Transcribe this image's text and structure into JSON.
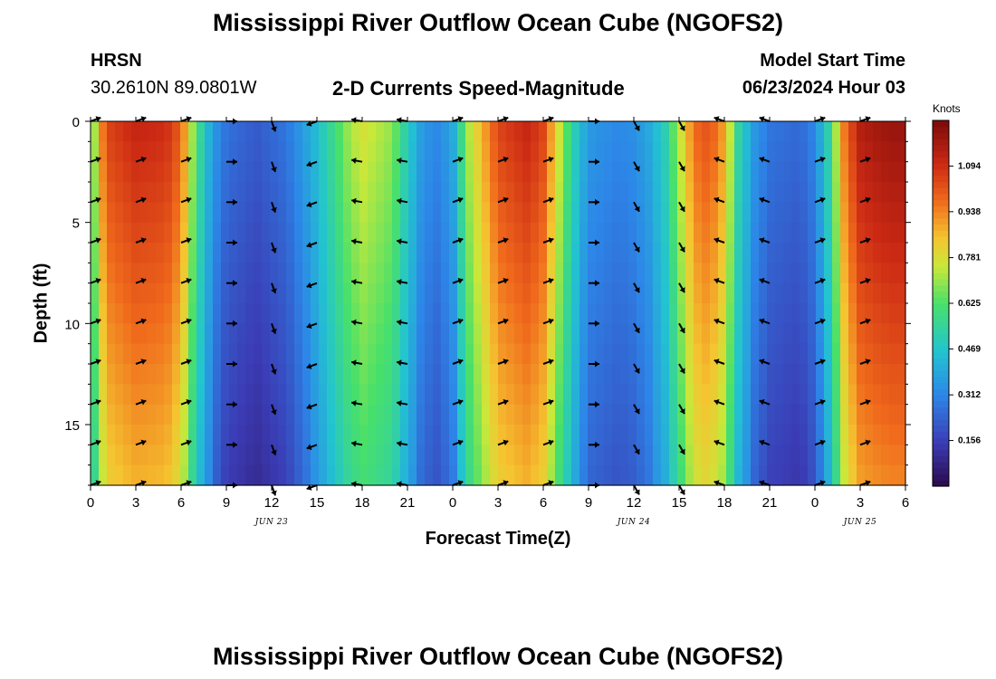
{
  "page": {
    "title": "Mississippi River Outflow Ocean Cube (NGOFS2)",
    "station": "HRSN",
    "coords": "30.2610N  89.0801W",
    "subtitle": "2-D Currents Speed-Magnitude",
    "model_label": "Model Start Time",
    "model_time": "06/23/2024 Hour 03",
    "footer_title": "Mississippi River Outflow Ocean Cube (NGOFS2)"
  },
  "chart_data": {
    "type": "heatmap",
    "xlabel": "Forecast Time(Z)",
    "ylabel": "Depth (ft)",
    "x_range_hours_from_start": [
      0,
      54
    ],
    "y_range_ft": [
      0,
      18
    ],
    "y_inverted": true,
    "x_ticks": [
      "0",
      "3",
      "6",
      "9",
      "12",
      "15",
      "18",
      "21",
      "0",
      "3",
      "6",
      "9",
      "12",
      "15",
      "18",
      "21",
      "0",
      "3",
      "6"
    ],
    "y_ticks": [
      "0",
      "5",
      "10",
      "15"
    ],
    "y_tick_values": [
      0,
      5,
      10,
      15
    ],
    "date_labels": [
      {
        "label": "JUN 23",
        "at_hour": 12
      },
      {
        "label": "JUN 24",
        "at_hour": 36
      },
      {
        "label": "JUN 25",
        "at_hour": 51
      }
    ],
    "colorbar": {
      "unit": "Knots",
      "ticks": [
        "1.094",
        "0.938",
        "0.781",
        "0.625",
        "0.469",
        "0.312",
        "0.156"
      ],
      "tick_values": [
        1.094,
        0.938,
        0.781,
        0.625,
        0.469,
        0.312,
        0.156
      ],
      "range": [
        0,
        1.25
      ],
      "colormap": "jet-like"
    },
    "speed_profile_hours": [
      0,
      1,
      3,
      5,
      6,
      7,
      8,
      9,
      11,
      13,
      15,
      17,
      18,
      20,
      21,
      22,
      23,
      24,
      25,
      27,
      29,
      30,
      31,
      32,
      33,
      35,
      36,
      37,
      38,
      40,
      41,
      42,
      43,
      44,
      45,
      47,
      48,
      49,
      50,
      51,
      52,
      53,
      54
    ],
    "speed_profile_surface_knots": [
      0.6,
      1.05,
      1.12,
      1.1,
      1.0,
      0.62,
      0.38,
      0.27,
      0.22,
      0.28,
      0.45,
      0.7,
      0.78,
      0.7,
      0.5,
      0.36,
      0.32,
      0.4,
      0.72,
      1.05,
      1.12,
      1.05,
      0.78,
      0.52,
      0.36,
      0.32,
      0.34,
      0.4,
      0.5,
      0.98,
      1.03,
      0.9,
      0.52,
      0.36,
      0.28,
      0.25,
      0.32,
      0.55,
      0.98,
      1.15,
      1.18,
      1.2,
      1.2
    ],
    "vectors": {
      "hours": [
        0,
        3,
        6,
        9,
        12,
        15,
        18,
        21,
        24,
        27,
        30,
        33,
        36,
        39,
        42,
        45,
        48,
        51
      ],
      "depths_ft": [
        0,
        2,
        4,
        6,
        8,
        10,
        12,
        14,
        16,
        18
      ],
      "dir_profile_deg": [
        20,
        20,
        20,
        0,
        290,
        200,
        170,
        170,
        20,
        20,
        20,
        0,
        300,
        300,
        160,
        160,
        20,
        20
      ]
    }
  }
}
